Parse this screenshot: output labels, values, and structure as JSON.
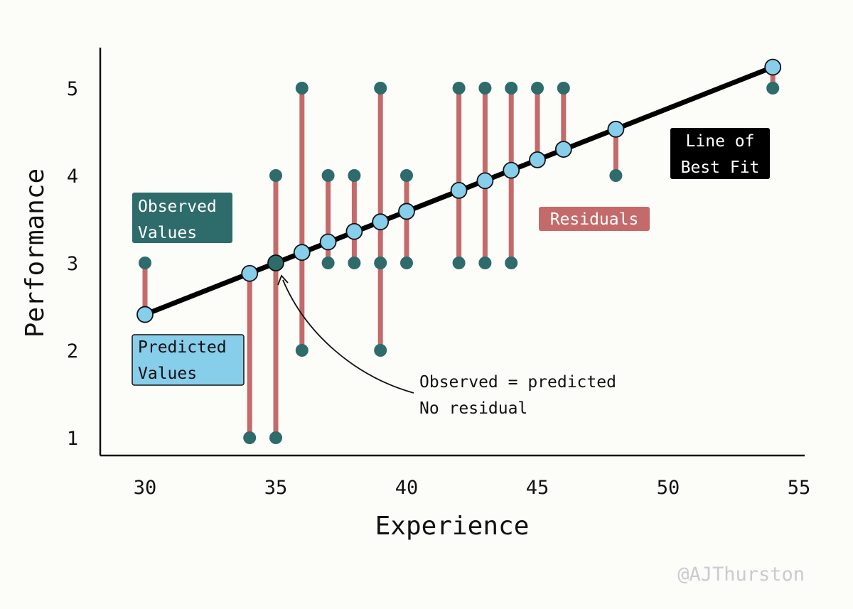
{
  "chart_data": {
    "type": "scatter",
    "title": "",
    "xlabel": "Experience",
    "ylabel": "Performance",
    "xlim": [
      28.4,
      55.3
    ],
    "ylim": [
      0.8,
      5.45
    ],
    "x_ticks": [
      30,
      35,
      40,
      45,
      50,
      55
    ],
    "y_ticks": [
      1,
      2,
      3,
      4,
      5
    ],
    "line_of_best_fit": {
      "x_start": 30,
      "y_start": 2.41,
      "x_end": 54,
      "y_end": 5.24
    },
    "series": [
      {
        "name": "Observed Values",
        "x": [
          30,
          34,
          35,
          36,
          37,
          38,
          39,
          40,
          42,
          43,
          44,
          45,
          46,
          48,
          54,
          35,
          36,
          37,
          38,
          39,
          40,
          42,
          43,
          44,
          36,
          39,
          39,
          37,
          38
        ],
        "y": [
          3,
          1,
          1,
          5,
          4,
          4,
          5,
          4,
          5,
          5,
          5,
          5,
          5,
          4,
          5,
          4,
          2,
          3,
          3,
          3,
          3,
          3,
          3,
          3,
          3.12,
          2,
          3.47,
          3.24,
          3.36
        ]
      },
      {
        "name": "Predicted Values",
        "x": [
          30,
          34,
          35,
          36,
          37,
          38,
          39,
          40,
          42,
          43,
          44,
          45,
          46,
          48,
          54
        ],
        "y": [
          2.41,
          2.88,
          3.0,
          3.12,
          3.24,
          3.36,
          3.47,
          3.59,
          3.83,
          3.94,
          4.06,
          4.18,
          4.3,
          4.53,
          5.24
        ]
      }
    ],
    "residuals": [
      {
        "x": 30,
        "from": 2.41,
        "to": 3
      },
      {
        "x": 34,
        "from": 2.88,
        "to": 1
      },
      {
        "x": 35,
        "from": 4,
        "to": 1
      },
      {
        "x": 36,
        "from": 5,
        "to": 2
      },
      {
        "x": 37,
        "from": 4,
        "to": 3
      },
      {
        "x": 38,
        "from": 4,
        "to": 3
      },
      {
        "x": 39,
        "from": 5,
        "to": 2
      },
      {
        "x": 40,
        "from": 4,
        "to": 3
      },
      {
        "x": 42,
        "from": 5,
        "to": 3
      },
      {
        "x": 43,
        "from": 5,
        "to": 3
      },
      {
        "x": 44,
        "from": 5,
        "to": 3
      },
      {
        "x": 45,
        "from": 5,
        "to": 4.18
      },
      {
        "x": 46,
        "from": 5,
        "to": 4.3
      },
      {
        "x": 48,
        "from": 4.53,
        "to": 4
      },
      {
        "x": 54,
        "from": 5.24,
        "to": 5
      }
    ],
    "observed_points": [
      [
        30,
        3
      ],
      [
        34,
        1
      ],
      [
        35,
        1
      ],
      [
        35,
        4
      ],
      [
        36,
        5
      ],
      [
        36,
        2
      ],
      [
        37,
        4
      ],
      [
        37,
        3
      ],
      [
        38,
        4
      ],
      [
        38,
        3
      ],
      [
        39,
        5
      ],
      [
        39,
        3
      ],
      [
        39,
        2
      ],
      [
        40,
        4
      ],
      [
        40,
        3
      ],
      [
        42,
        5
      ],
      [
        42,
        3
      ],
      [
        43,
        5
      ],
      [
        43,
        3
      ],
      [
        44,
        5
      ],
      [
        44,
        3
      ],
      [
        45,
        5
      ],
      [
        46,
        5
      ],
      [
        48,
        4
      ],
      [
        54,
        5
      ]
    ],
    "predicted_points": [
      [
        30,
        2.41
      ],
      [
        34,
        2.88
      ],
      [
        35,
        3.0
      ],
      [
        36,
        3.12
      ],
      [
        37,
        3.24
      ],
      [
        38,
        3.36
      ],
      [
        39,
        3.47
      ],
      [
        40,
        3.59
      ],
      [
        42,
        3.83
      ],
      [
        43,
        3.94
      ],
      [
        44,
        4.06
      ],
      [
        45,
        4.18
      ],
      [
        46,
        4.3
      ],
      [
        48,
        4.53
      ],
      [
        54,
        5.24
      ]
    ],
    "highlight_point": [
      35,
      3.0
    ],
    "annotations": {
      "observed_label": [
        "Observed",
        "Values"
      ],
      "predicted_label": [
        "Predicted",
        "Values"
      ],
      "residuals_label": "Residuals",
      "best_fit_label": [
        "Line of",
        "Best Fit"
      ],
      "note_lines": [
        "Observed = predicted",
        "No residual"
      ]
    },
    "credit": "@AJThurston"
  },
  "colors": {
    "observed": "#2e6b6b",
    "predicted": "#87ceeb",
    "residual": "#c46a6a",
    "line": "#000000",
    "axis": "#111111"
  }
}
